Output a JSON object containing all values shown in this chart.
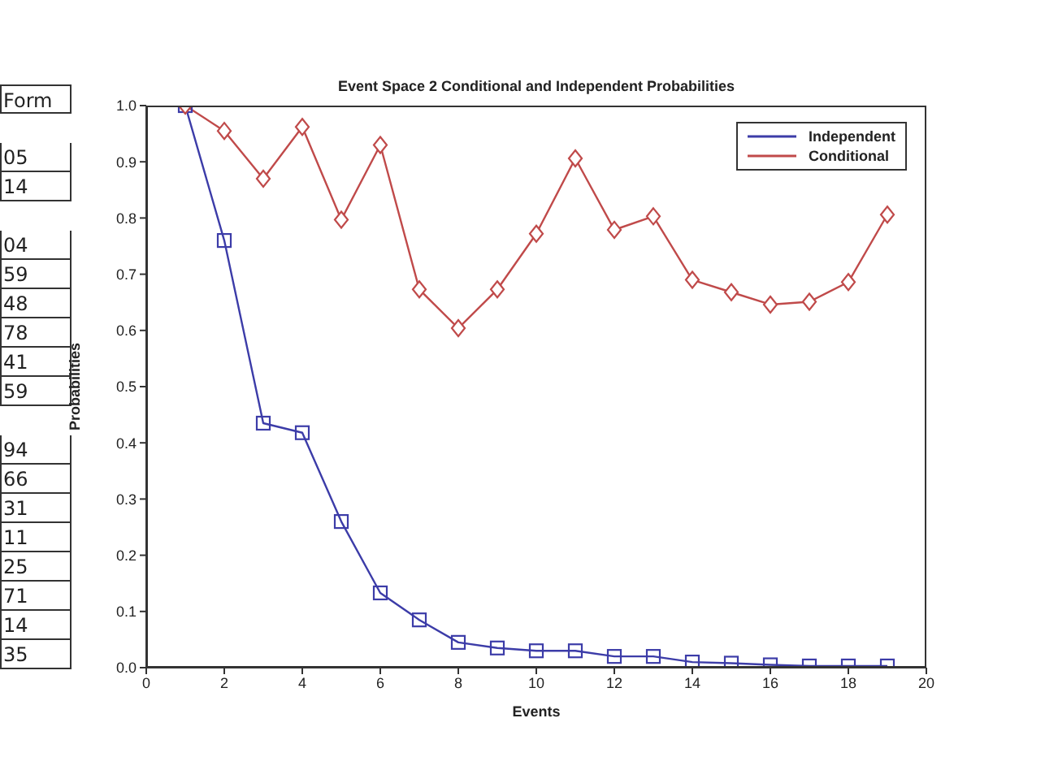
{
  "chart_data": {
    "type": "line",
    "title": "Event Space 2 Conditional and Independent Probabilities",
    "xlabel": "Events",
    "ylabel": "Probabilities",
    "x": [
      1,
      2,
      3,
      4,
      5,
      6,
      7,
      8,
      9,
      10,
      11,
      12,
      13,
      14,
      15,
      16,
      17,
      18,
      19
    ],
    "series": [
      {
        "name": "Independent",
        "color": "#3c3ca8",
        "marker": "square",
        "values": [
          1.0,
          0.76,
          0.435,
          0.418,
          0.26,
          0.133,
          0.085,
          0.045,
          0.035,
          0.03,
          0.03,
          0.02,
          0.02,
          0.01,
          0.008,
          0.005,
          0.003,
          0.003,
          0.003
        ]
      },
      {
        "name": "Conditional",
        "color": "#c04a4a",
        "marker": "diamond",
        "values": [
          1.0,
          0.955,
          0.87,
          0.962,
          0.797,
          0.93,
          0.673,
          0.604,
          0.673,
          0.772,
          0.906,
          0.779,
          0.803,
          0.69,
          0.668,
          0.646,
          0.651,
          0.686,
          0.806
        ]
      }
    ],
    "xlim": [
      0,
      20
    ],
    "xticks": [
      0,
      2,
      4,
      6,
      8,
      10,
      12,
      14,
      16,
      18,
      20
    ],
    "ylim": [
      0,
      1
    ],
    "yticks": [
      {
        "value": 0,
        "label": "0.0"
      },
      0.1,
      0.2,
      0.3,
      0.4,
      0.5,
      0.6,
      0.7,
      0.8,
      0.9,
      {
        "value": 1,
        "label": "1.0"
      }
    ],
    "grid": false,
    "legend": "top right",
    "line_style": "solid",
    "annotations": [
      "Form",
      "05",
      "14",
      "04",
      "59",
      "48",
      "78",
      "41",
      "59",
      "94",
      "66",
      "31",
      "11",
      "25",
      "71",
      "14",
      "35"
    ]
  }
}
